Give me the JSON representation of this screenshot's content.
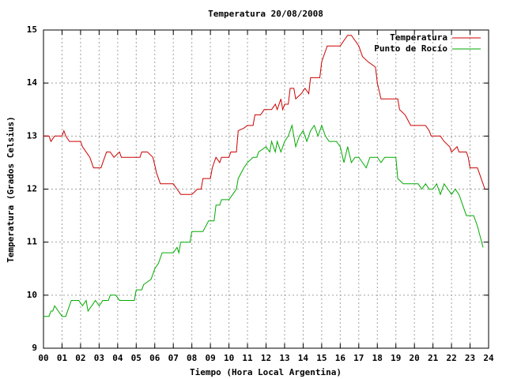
{
  "chart_data": {
    "type": "line",
    "title": "Temperatura 20/08/2008",
    "x_label": "Tiempo (Hora Local Argentina)",
    "y_label": "Temperatura (Grados Celsius)",
    "xlim": [
      0,
      24
    ],
    "ylim": [
      9,
      15
    ],
    "xticks": [
      {
        "value": 0,
        "label": "00"
      },
      {
        "value": 1,
        "label": "01"
      },
      {
        "value": 2,
        "label": "02"
      },
      {
        "value": 3,
        "label": "03"
      },
      {
        "value": 4,
        "label": "04"
      },
      {
        "value": 5,
        "label": "05"
      },
      {
        "value": 6,
        "label": "06"
      },
      {
        "value": 7,
        "label": "07"
      },
      {
        "value": 8,
        "label": "08"
      },
      {
        "value": 9,
        "label": "09"
      },
      10,
      11,
      12,
      13,
      14,
      15,
      16,
      17,
      18,
      19,
      20,
      21,
      22,
      23,
      24
    ],
    "yticks": [
      9,
      10,
      11,
      12,
      13,
      14,
      15
    ],
    "grid": true,
    "legend": "top-right",
    "series": [
      {
        "name": "Temperatura",
        "color": "#cc0000",
        "x": [
          0,
          0.3,
          0.4,
          0.6,
          1.0,
          1.1,
          1.2,
          1.4,
          2.0,
          2.1,
          2.5,
          2.6,
          2.7,
          3.1,
          3.3,
          3.4,
          3.6,
          3.8,
          4.1,
          4.2,
          5.0,
          5.2,
          5.3,
          5.6,
          5.9,
          6.1,
          6.3,
          7.0,
          7.2,
          7.4,
          8.0,
          8.3,
          8.5,
          8.6,
          9.0,
          9.1,
          9.2,
          9.3,
          9.5,
          9.6,
          10.0,
          10.1,
          10.4,
          10.5,
          10.8,
          11.0,
          11.3,
          11.4,
          11.7,
          11.9,
          12.3,
          12.5,
          12.6,
          12.8,
          12.9,
          13.0,
          13.2,
          13.3,
          13.5,
          13.6,
          13.9,
          14.1,
          14.3,
          14.4,
          14.9,
          15.0,
          15.1,
          15.3,
          16.0,
          16.2,
          16.4,
          16.6,
          16.8,
          17.0,
          17.2,
          17.5,
          17.9,
          18.0,
          18.2,
          19.1,
          19.2,
          19.5,
          19.8,
          20.6,
          20.8,
          20.9,
          21.4,
          21.6,
          21.9,
          22.0,
          22.3,
          22.4,
          22.8,
          22.9,
          23.0,
          23.4,
          23.6,
          23.8
        ],
        "values": [
          13.0,
          13.0,
          12.9,
          13.0,
          13.0,
          13.1,
          13.0,
          12.9,
          12.9,
          12.8,
          12.6,
          12.5,
          12.4,
          12.4,
          12.6,
          12.7,
          12.7,
          12.6,
          12.7,
          12.6,
          12.6,
          12.6,
          12.7,
          12.7,
          12.6,
          12.3,
          12.1,
          12.1,
          12.0,
          11.9,
          11.9,
          12.0,
          12.0,
          12.2,
          12.2,
          12.4,
          12.5,
          12.6,
          12.5,
          12.6,
          12.6,
          12.7,
          12.7,
          13.1,
          13.15,
          13.2,
          13.2,
          13.4,
          13.4,
          13.5,
          13.5,
          13.6,
          13.5,
          13.7,
          13.5,
          13.6,
          13.6,
          13.9,
          13.9,
          13.7,
          13.8,
          13.9,
          13.8,
          14.1,
          14.1,
          14.4,
          14.5,
          14.7,
          14.7,
          14.8,
          14.9,
          14.9,
          14.8,
          14.7,
          14.5,
          14.4,
          14.3,
          14.0,
          13.7,
          13.7,
          13.5,
          13.4,
          13.2,
          13.2,
          13.1,
          13.0,
          13.0,
          12.9,
          12.8,
          12.7,
          12.8,
          12.7,
          12.7,
          12.6,
          12.4,
          12.4,
          12.2,
          12.0
        ]
      },
      {
        "name": "Punto de Rocío",
        "color": "#00aa00",
        "x": [
          0,
          0.3,
          0.4,
          0.5,
          0.6,
          0.8,
          1.0,
          1.2,
          1.4,
          1.5,
          1.9,
          2.1,
          2.3,
          2.4,
          2.6,
          2.8,
          3.0,
          3.2,
          3.5,
          3.6,
          3.9,
          4.1,
          4.9,
          5.0,
          5.3,
          5.4,
          5.8,
          6.0,
          6.2,
          6.4,
          7.0,
          7.2,
          7.3,
          7.4,
          7.9,
          8.0,
          8.4,
          8.6,
          8.9,
          9.2,
          9.3,
          9.5,
          9.6,
          10.0,
          10.2,
          10.4,
          10.5,
          10.8,
          11.0,
          11.3,
          11.5,
          11.6,
          12.0,
          12.2,
          12.3,
          12.5,
          12.6,
          12.8,
          13.0,
          13.2,
          13.4,
          13.6,
          13.8,
          14.0,
          14.2,
          14.4,
          14.6,
          14.8,
          15.0,
          15.2,
          15.4,
          15.8,
          16.0,
          16.2,
          16.4,
          16.6,
          16.8,
          17.0,
          17.2,
          17.4,
          17.6,
          18.0,
          18.2,
          18.4,
          19.0,
          19.1,
          19.4,
          20.2,
          20.4,
          20.6,
          20.8,
          21.0,
          21.2,
          21.4,
          21.6,
          21.8,
          22.0,
          22.2,
          22.4,
          22.6,
          22.8,
          23.2,
          23.4,
          23.7
        ],
        "values": [
          9.6,
          9.6,
          9.7,
          9.7,
          9.8,
          9.7,
          9.6,
          9.6,
          9.8,
          9.9,
          9.9,
          9.8,
          9.9,
          9.7,
          9.8,
          9.9,
          9.8,
          9.9,
          9.9,
          10.0,
          10.0,
          9.9,
          9.9,
          10.1,
          10.1,
          10.2,
          10.3,
          10.5,
          10.6,
          10.8,
          10.8,
          10.9,
          10.8,
          11.0,
          11.0,
          11.2,
          11.2,
          11.2,
          11.4,
          11.4,
          11.7,
          11.7,
          11.8,
          11.8,
          11.9,
          12.0,
          12.2,
          12.4,
          12.5,
          12.6,
          12.6,
          12.7,
          12.8,
          12.7,
          12.9,
          12.7,
          12.9,
          12.7,
          12.9,
          13.0,
          13.2,
          12.8,
          13.0,
          13.1,
          12.9,
          13.1,
          13.2,
          13.0,
          13.2,
          13.0,
          12.9,
          12.9,
          12.8,
          12.5,
          12.8,
          12.5,
          12.6,
          12.6,
          12.5,
          12.4,
          12.6,
          12.6,
          12.5,
          12.6,
          12.6,
          12.2,
          12.1,
          12.1,
          12.0,
          12.1,
          12.0,
          12.0,
          12.1,
          11.9,
          12.1,
          12.0,
          11.9,
          12.0,
          11.9,
          11.7,
          11.5,
          11.5,
          11.3,
          10.9
        ]
      }
    ]
  }
}
